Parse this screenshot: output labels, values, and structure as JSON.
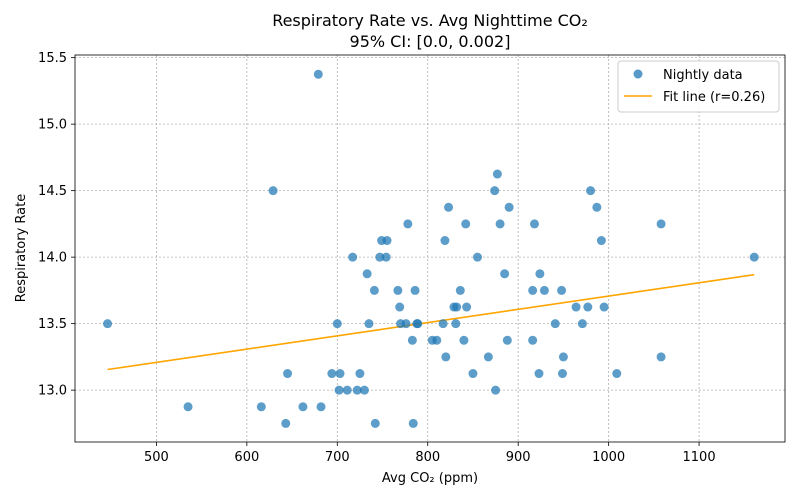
{
  "chart_data": {
    "type": "scatter",
    "title": "Respiratory Rate vs. Avg Nighttime CO₂",
    "subtitle": "95% CI: [0.0, 0.002]",
    "xlabel": "Avg CO₂ (ppm)",
    "ylabel": "Respiratory Rate",
    "xlim": [
      410,
      1195
    ],
    "ylim": [
      12.61,
      15.52
    ],
    "xticks": [
      500,
      600,
      700,
      800,
      900,
      1000,
      1100
    ],
    "yticks": [
      13.0,
      13.5,
      14.0,
      14.5,
      15.0,
      15.5
    ],
    "grid": true,
    "legend_position": "top-right",
    "colors": {
      "points": "#1f77b4",
      "fit": "#ffa500"
    },
    "series": [
      {
        "name": "Nightly data",
        "kind": "scatter",
        "points": [
          [
            446,
            13.5
          ],
          [
            535,
            12.875
          ],
          [
            616,
            12.875
          ],
          [
            629,
            14.5
          ],
          [
            643,
            12.75
          ],
          [
            645,
            13.125
          ],
          [
            662,
            12.875
          ],
          [
            679,
            15.375
          ],
          [
            682,
            12.875
          ],
          [
            694,
            13.125
          ],
          [
            700,
            13.5
          ],
          [
            702,
            13.0
          ],
          [
            703,
            13.125
          ],
          [
            711,
            13.0
          ],
          [
            717,
            14.0
          ],
          [
            722,
            13.0
          ],
          [
            725,
            13.125
          ],
          [
            730,
            13.0
          ],
          [
            733,
            13.875
          ],
          [
            735,
            13.5
          ],
          [
            741,
            13.75
          ],
          [
            742,
            12.75
          ],
          [
            747,
            14.0
          ],
          [
            749,
            14.125
          ],
          [
            754,
            14.0
          ],
          [
            755,
            14.125
          ],
          [
            767,
            13.75
          ],
          [
            769,
            13.625
          ],
          [
            770,
            13.5
          ],
          [
            776,
            13.5
          ],
          [
            778,
            14.25
          ],
          [
            783,
            13.375
          ],
          [
            784,
            12.75
          ],
          [
            786,
            13.75
          ],
          [
            788,
            13.5
          ],
          [
            789,
            13.5
          ],
          [
            805,
            13.375
          ],
          [
            810,
            13.375
          ],
          [
            817,
            13.5
          ],
          [
            819,
            14.125
          ],
          [
            820,
            13.25
          ],
          [
            823,
            14.375
          ],
          [
            829,
            13.625
          ],
          [
            831,
            13.5
          ],
          [
            832,
            13.625
          ],
          [
            836,
            13.75
          ],
          [
            840,
            13.375
          ],
          [
            842,
            14.25
          ],
          [
            843,
            13.625
          ],
          [
            850,
            13.125
          ],
          [
            855,
            14.0
          ],
          [
            867,
            13.25
          ],
          [
            874,
            14.5
          ],
          [
            875,
            13.0
          ],
          [
            877,
            14.625
          ],
          [
            880,
            14.25
          ],
          [
            885,
            13.875
          ],
          [
            888,
            13.375
          ],
          [
            890,
            14.375
          ],
          [
            916,
            13.375
          ],
          [
            916,
            13.75
          ],
          [
            918,
            14.25
          ],
          [
            923,
            13.125
          ],
          [
            924,
            13.875
          ],
          [
            929,
            13.75
          ],
          [
            941,
            13.5
          ],
          [
            948,
            13.75
          ],
          [
            949,
            13.125
          ],
          [
            950,
            13.25
          ],
          [
            964,
            13.625
          ],
          [
            971,
            13.5
          ],
          [
            977,
            13.625
          ],
          [
            980,
            14.5
          ],
          [
            987,
            14.375
          ],
          [
            992,
            14.125
          ],
          [
            995,
            13.625
          ],
          [
            1009,
            13.125
          ],
          [
            1058,
            14.25
          ],
          [
            1058,
            13.25
          ],
          [
            1161,
            14.0
          ]
        ]
      },
      {
        "name": "Fit line (r=0.26)",
        "kind": "line",
        "points": [
          [
            446,
            13.155
          ],
          [
            1161,
            13.868
          ]
        ]
      }
    ]
  }
}
